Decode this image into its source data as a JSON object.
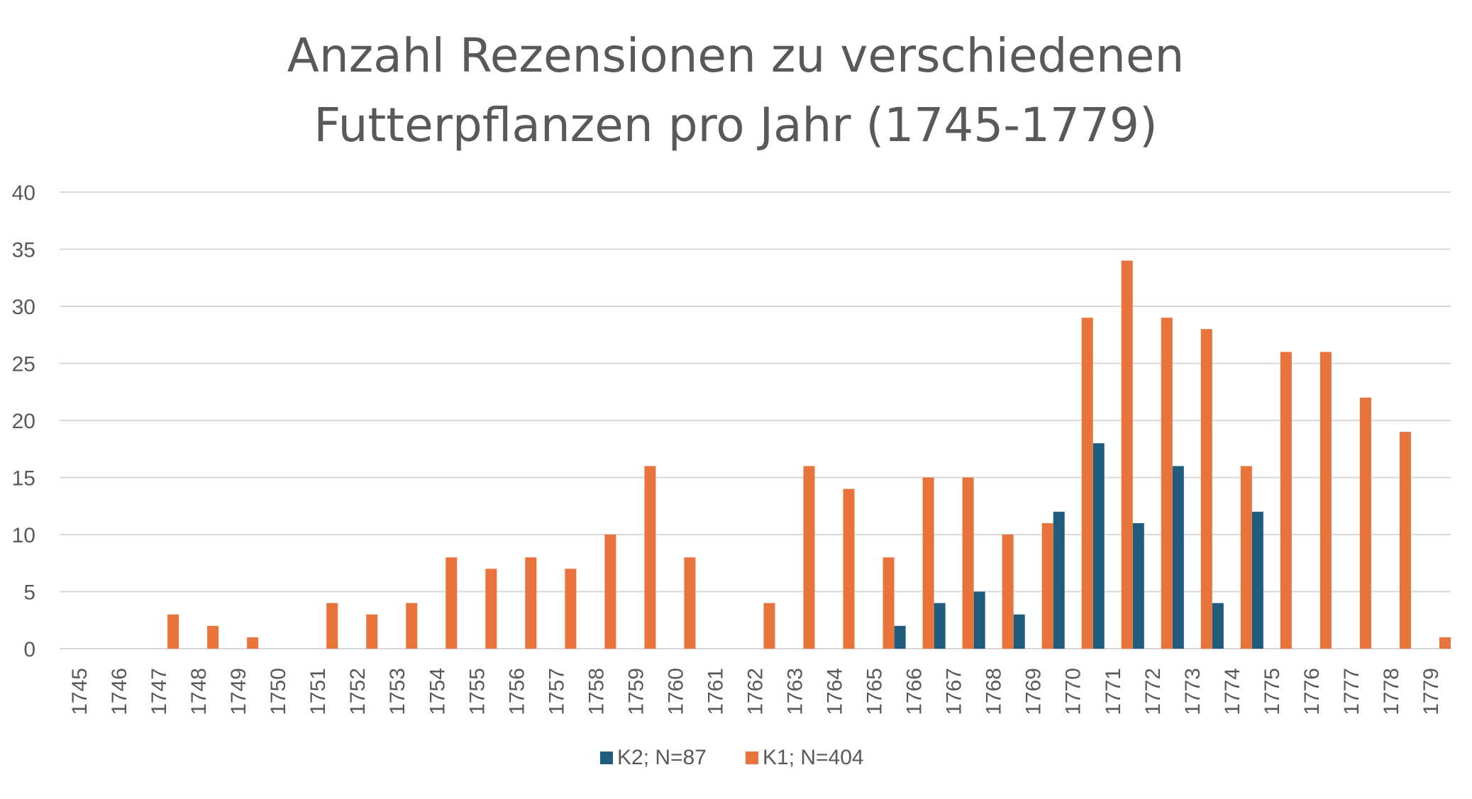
{
  "chart_data": {
    "type": "bar",
    "title": [
      "Anzahl Rezensionen zu verschiedenen",
      "Futterpflanzen pro Jahr (1745-1779)"
    ],
    "xlabel": "",
    "ylabel": "",
    "categories": [
      "1745",
      "1746",
      "1747",
      "1748",
      "1749",
      "1750",
      "1751",
      "1752",
      "1753",
      "1754",
      "1755",
      "1756",
      "1757",
      "1758",
      "1759",
      "1760",
      "1761",
      "1762",
      "1763",
      "1764",
      "1765",
      "1766",
      "1767",
      "1768",
      "1769",
      "1770",
      "1771",
      "1772",
      "1773",
      "1774",
      "1775",
      "1776",
      "1777",
      "1778",
      "1779"
    ],
    "series": [
      {
        "name": "K2; N=87",
        "color": "#1f5c7e",
        "values": [
          0,
          0,
          0,
          0,
          0,
          0,
          0,
          0,
          0,
          0,
          0,
          0,
          0,
          0,
          0,
          0,
          0,
          0,
          0,
          0,
          0,
          2,
          4,
          5,
          3,
          12,
          18,
          11,
          16,
          4,
          12,
          0,
          0,
          0,
          0
        ]
      },
      {
        "name": "K1; N=404",
        "color": "#e8743b",
        "values": [
          0,
          0,
          3,
          2,
          1,
          0,
          4,
          3,
          4,
          8,
          7,
          8,
          7,
          10,
          16,
          8,
          0,
          4,
          16,
          14,
          8,
          15,
          15,
          10,
          11,
          29,
          34,
          29,
          28,
          16,
          26,
          26,
          22,
          19,
          1
        ]
      }
    ],
    "ylim": [
      0,
      40
    ],
    "yticks": [
      "0",
      "5",
      "10",
      "15",
      "20",
      "25",
      "30",
      "35",
      "40"
    ],
    "grid": true,
    "legend_position": "bottom"
  }
}
